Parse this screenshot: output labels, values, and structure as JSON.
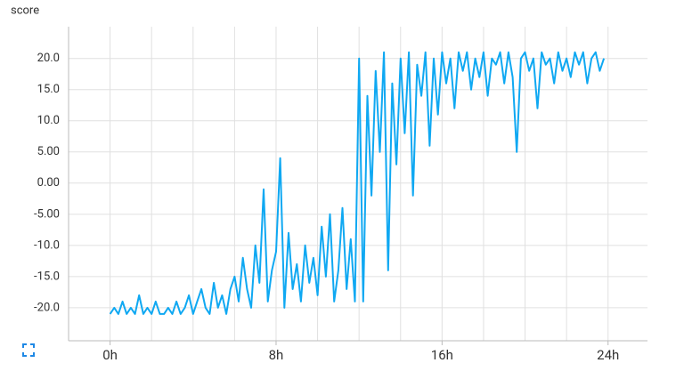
{
  "chart_data": {
    "type": "line",
    "title": "score",
    "color": "#0fa8f2",
    "x": [
      0,
      0.2,
      0.4,
      0.6,
      0.8,
      1,
      1.2,
      1.4,
      1.6,
      1.8,
      2,
      2.2,
      2.4,
      2.6,
      2.8,
      3,
      3.2,
      3.4,
      3.6,
      3.8,
      4,
      4.2,
      4.4,
      4.6,
      4.8,
      5,
      5.2,
      5.4,
      5.6,
      5.8,
      6,
      6.2,
      6.4,
      6.6,
      6.8,
      7,
      7.2,
      7.4,
      7.6,
      7.8,
      8,
      8.2,
      8.4,
      8.6,
      8.8,
      9,
      9.2,
      9.4,
      9.6,
      9.8,
      10,
      10.2,
      10.4,
      10.6,
      10.8,
      11,
      11.2,
      11.4,
      11.6,
      11.8,
      12,
      12.2,
      12.4,
      12.6,
      12.8,
      13,
      13.2,
      13.4,
      13.6,
      13.8,
      14,
      14.2,
      14.4,
      14.6,
      14.8,
      15,
      15.2,
      15.4,
      15.6,
      15.8,
      16,
      16.2,
      16.4,
      16.6,
      16.8,
      17,
      17.2,
      17.4,
      17.6,
      17.8,
      18,
      18.2,
      18.4,
      18.6,
      18.8,
      19,
      19.2,
      19.4,
      19.6,
      19.8,
      20,
      20.2,
      20.4,
      20.6,
      20.8,
      21,
      21.2,
      21.4,
      21.6,
      21.8,
      22,
      22.2,
      22.4,
      22.6,
      22.8,
      23,
      23.2,
      23.4,
      23.6,
      23.8
    ],
    "values": [
      -21,
      -20,
      -21,
      -19,
      -21,
      -20,
      -21,
      -18,
      -21,
      -20,
      -21,
      -19,
      -21,
      -21,
      -20,
      -21,
      -19,
      -21,
      -20,
      -18,
      -21,
      -19,
      -17,
      -20,
      -21,
      -16,
      -20,
      -18,
      -21,
      -17,
      -15,
      -19,
      -12,
      -17,
      -20,
      -10,
      -16,
      -1,
      -19,
      -14,
      -11,
      4,
      -20,
      -8,
      -17,
      -13,
      -19,
      -10,
      -16,
      -12,
      -18,
      -7,
      -15,
      -5,
      -19,
      -14,
      -4,
      -17,
      -9,
      -19,
      20,
      -19,
      14,
      -2,
      18,
      5,
      21,
      -14,
      16,
      3,
      20,
      8,
      21,
      -2,
      19,
      14,
      21,
      6,
      20,
      11,
      21,
      16,
      20,
      12,
      21,
      18,
      21,
      15,
      20,
      17,
      21,
      14,
      20,
      19,
      21,
      16,
      21,
      17,
      5,
      20,
      21,
      18,
      20,
      12,
      21,
      19,
      20,
      16,
      21,
      18,
      20,
      17,
      21,
      19,
      21,
      16,
      20,
      21,
      18,
      20
    ],
    "xlim": [
      -2,
      25.9
    ],
    "ylim": [
      -25.3,
      25.1
    ],
    "xticks": [
      {
        "value": 0,
        "label": "0h"
      },
      {
        "value": 8,
        "label": "8h"
      },
      {
        "value": 16,
        "label": "16h"
      },
      {
        "value": 24,
        "label": "24h"
      }
    ],
    "xgrid": [
      0,
      2,
      4,
      6,
      8,
      10,
      12,
      14,
      16,
      18,
      20,
      22,
      24
    ],
    "yticks": [
      {
        "value": 20,
        "label": "20.0"
      },
      {
        "value": 15,
        "label": "15.0"
      },
      {
        "value": 10,
        "label": "10.0"
      },
      {
        "value": 5,
        "label": "5.00"
      },
      {
        "value": 0,
        "label": "0.00"
      },
      {
        "value": -5,
        "label": "-5.00"
      },
      {
        "value": -10,
        "label": "-10.0"
      },
      {
        "value": -15,
        "label": "-15.0"
      },
      {
        "value": -20,
        "label": "-20.0"
      }
    ],
    "grid": true
  }
}
